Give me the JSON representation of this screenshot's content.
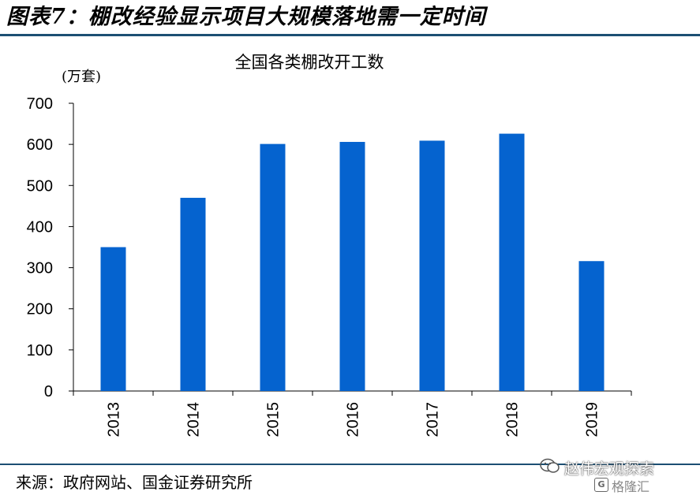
{
  "header": {
    "title": "图表7：棚改经验显示项目大规模落地需一定时间"
  },
  "footer": {
    "source": "来源：政府网站、国金证券研究所"
  },
  "watermark": {
    "name": "赵伟宏观探索",
    "logo_letter": "G",
    "sub": "格隆汇"
  },
  "colors": {
    "bar": "#0563cf",
    "rule": "#1c4f73",
    "axis": "#000000"
  },
  "chart_data": {
    "type": "bar",
    "title": "全国各类棚改开工数",
    "ylabel": "(万套)",
    "xlabel": "",
    "categories": [
      "2013",
      "2014",
      "2015",
      "2016",
      "2017",
      "2018",
      "2019"
    ],
    "values": [
      350,
      470,
      601,
      606,
      609,
      626,
      316
    ],
    "ylim": [
      0,
      700
    ],
    "yticks": [
      0,
      100,
      200,
      300,
      400,
      500,
      600,
      700
    ],
    "grid": false,
    "legend": "none"
  }
}
